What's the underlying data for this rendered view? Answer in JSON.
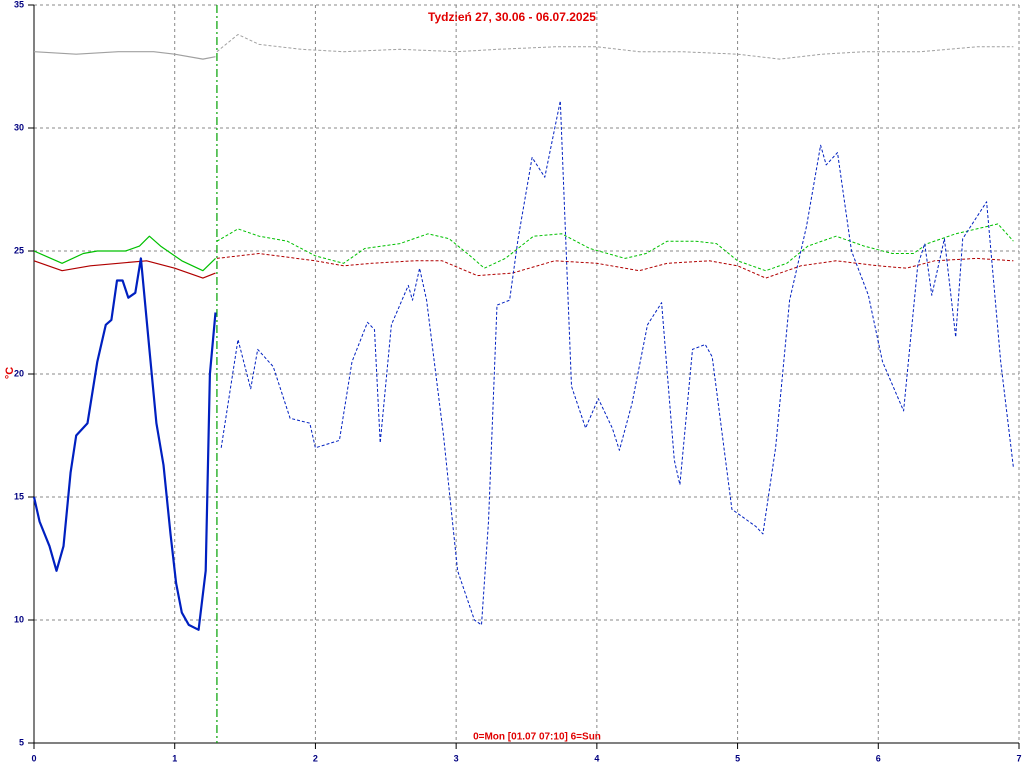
{
  "chart_data": {
    "type": "line",
    "title": "Tydzień 27, 30.06 - 06.07.2025",
    "x_label": "0=Mon [01.07 07:10] 6=Sun",
    "y_label": "°C",
    "xlim": [
      0,
      7
    ],
    "ylim": [
      5,
      35
    ],
    "xticks": [
      0,
      1,
      2,
      3,
      4,
      5,
      6,
      7
    ],
    "yticks": [
      5,
      10,
      15,
      20,
      25,
      30,
      35
    ],
    "grid": true,
    "marker_x": 1.3,
    "marker_color": "#00a000",
    "series": [
      {
        "color": "#a0a0a0",
        "dash": false,
        "x": [
          0,
          0.3,
          0.6,
          0.85,
          1.0,
          1.2,
          1.29
        ],
        "values": [
          33.1,
          33.0,
          33.1,
          33.1,
          33.0,
          32.8,
          32.9
        ]
      },
      {
        "color": "#a0a0a0",
        "dash": true,
        "x": [
          1.3,
          1.45,
          1.6,
          1.9,
          2.2,
          2.6,
          3.0,
          3.3,
          3.7,
          4.0,
          4.3,
          4.6,
          5.0,
          5.3,
          5.6,
          5.9,
          6.3,
          6.7,
          6.96
        ],
        "values": [
          33.1,
          33.8,
          33.4,
          33.2,
          33.1,
          33.2,
          33.1,
          33.2,
          33.3,
          33.3,
          33.1,
          33.1,
          33.0,
          32.8,
          33.0,
          33.1,
          33.1,
          33.3,
          33.3
        ]
      },
      {
        "color": "#00c000",
        "dash": false,
        "x": [
          0,
          0.2,
          0.35,
          0.45,
          0.65,
          0.75,
          0.82,
          0.9,
          1.05,
          1.2,
          1.29
        ],
        "values": [
          25.0,
          24.5,
          24.9,
          25.0,
          25.0,
          25.2,
          25.6,
          25.2,
          24.6,
          24.2,
          24.7
        ]
      },
      {
        "color": "#00c000",
        "dash": true,
        "x": [
          1.3,
          1.45,
          1.6,
          1.8,
          2.0,
          2.2,
          2.35,
          2.6,
          2.8,
          2.95,
          3.1,
          3.2,
          3.35,
          3.55,
          3.75,
          3.95,
          4.2,
          4.35,
          4.5,
          4.7,
          4.85,
          5.0,
          5.2,
          5.35,
          5.5,
          5.7,
          5.9,
          6.1,
          6.25,
          6.35,
          6.55,
          6.7,
          6.85,
          6.96
        ],
        "values": [
          25.4,
          25.9,
          25.6,
          25.4,
          24.8,
          24.5,
          25.1,
          25.3,
          25.7,
          25.5,
          24.8,
          24.3,
          24.7,
          25.6,
          25.7,
          25.1,
          24.7,
          24.9,
          25.4,
          25.4,
          25.3,
          24.6,
          24.2,
          24.5,
          25.2,
          25.6,
          25.2,
          24.9,
          24.9,
          25.3,
          25.7,
          25.9,
          26.1,
          25.4
        ]
      },
      {
        "color": "#b00000",
        "dash": false,
        "x": [
          0,
          0.2,
          0.4,
          0.6,
          0.8,
          1.0,
          1.2,
          1.29
        ],
        "values": [
          24.6,
          24.2,
          24.4,
          24.5,
          24.6,
          24.3,
          23.9,
          24.1
        ]
      },
      {
        "color": "#b00000",
        "dash": true,
        "x": [
          1.3,
          1.6,
          2.0,
          2.2,
          2.4,
          2.7,
          2.9,
          3.15,
          3.4,
          3.7,
          4.0,
          4.3,
          4.5,
          4.8,
          5.0,
          5.2,
          5.45,
          5.7,
          6.0,
          6.2,
          6.4,
          6.7,
          6.96
        ],
        "values": [
          24.7,
          24.9,
          24.6,
          24.4,
          24.5,
          24.6,
          24.6,
          24.0,
          24.1,
          24.6,
          24.5,
          24.2,
          24.5,
          24.6,
          24.4,
          23.9,
          24.4,
          24.6,
          24.4,
          24.3,
          24.6,
          24.7,
          24.6
        ]
      },
      {
        "color": "#0020c0",
        "dash": false,
        "x": [
          0,
          0.04,
          0.11,
          0.16,
          0.21,
          0.26,
          0.3,
          0.38,
          0.45,
          0.51,
          0.55,
          0.59,
          0.63,
          0.67,
          0.72,
          0.76,
          0.82,
          0.87,
          0.92,
          0.97,
          1.01,
          1.05,
          1.1,
          1.17,
          1.22,
          1.25,
          1.29
        ],
        "values": [
          15,
          14,
          13,
          12,
          13,
          16,
          17.5,
          18,
          20.5,
          22,
          22.2,
          23.8,
          23.8,
          23.1,
          23.3,
          24.7,
          21,
          18,
          16.3,
          13.5,
          11.5,
          10.3,
          9.8,
          9.6,
          12,
          20,
          22.5
        ]
      },
      {
        "color": "#0020c0",
        "dash": true,
        "x": [
          1.33,
          1.45,
          1.54,
          1.59,
          1.7,
          1.82,
          1.96,
          2.0,
          2.17,
          2.26,
          2.37,
          2.42,
          2.46,
          2.54,
          2.66,
          2.69,
          2.74,
          2.79,
          2.91,
          3.01,
          3.13,
          3.18,
          3.23,
          3.29,
          3.38,
          3.44,
          3.54,
          3.63,
          3.74,
          3.82,
          3.92,
          4.01,
          4.11,
          4.16,
          4.25,
          4.36,
          4.46,
          4.55,
          4.59,
          4.68,
          4.77,
          4.82,
          4.96,
          5.13,
          5.18,
          5.27,
          5.37,
          5.49,
          5.59,
          5.63,
          5.71,
          5.81,
          5.93,
          6.03,
          6.18,
          6.28,
          6.33,
          6.38,
          6.47,
          6.55,
          6.6,
          6.77,
          6.87,
          6.96
        ],
        "values": [
          17,
          21.4,
          19.4,
          21,
          20.3,
          18.2,
          18,
          17,
          17.3,
          20.5,
          22.1,
          21.8,
          17.2,
          22,
          23.6,
          23,
          24.3,
          23,
          17.5,
          12,
          10,
          9.8,
          14,
          22.8,
          23,
          25.5,
          28.8,
          28,
          31.1,
          19.5,
          17.8,
          19,
          17.8,
          16.9,
          18.8,
          22,
          22.9,
          16.5,
          15.5,
          21,
          21.2,
          20.7,
          14.5,
          13.8,
          13.5,
          17,
          23,
          26,
          29.3,
          28.5,
          29,
          25,
          23.2,
          20.5,
          18.5,
          24.4,
          25.3,
          23.2,
          25.5,
          21.5,
          25.5,
          27,
          20.5,
          16.2
        ]
      }
    ]
  }
}
